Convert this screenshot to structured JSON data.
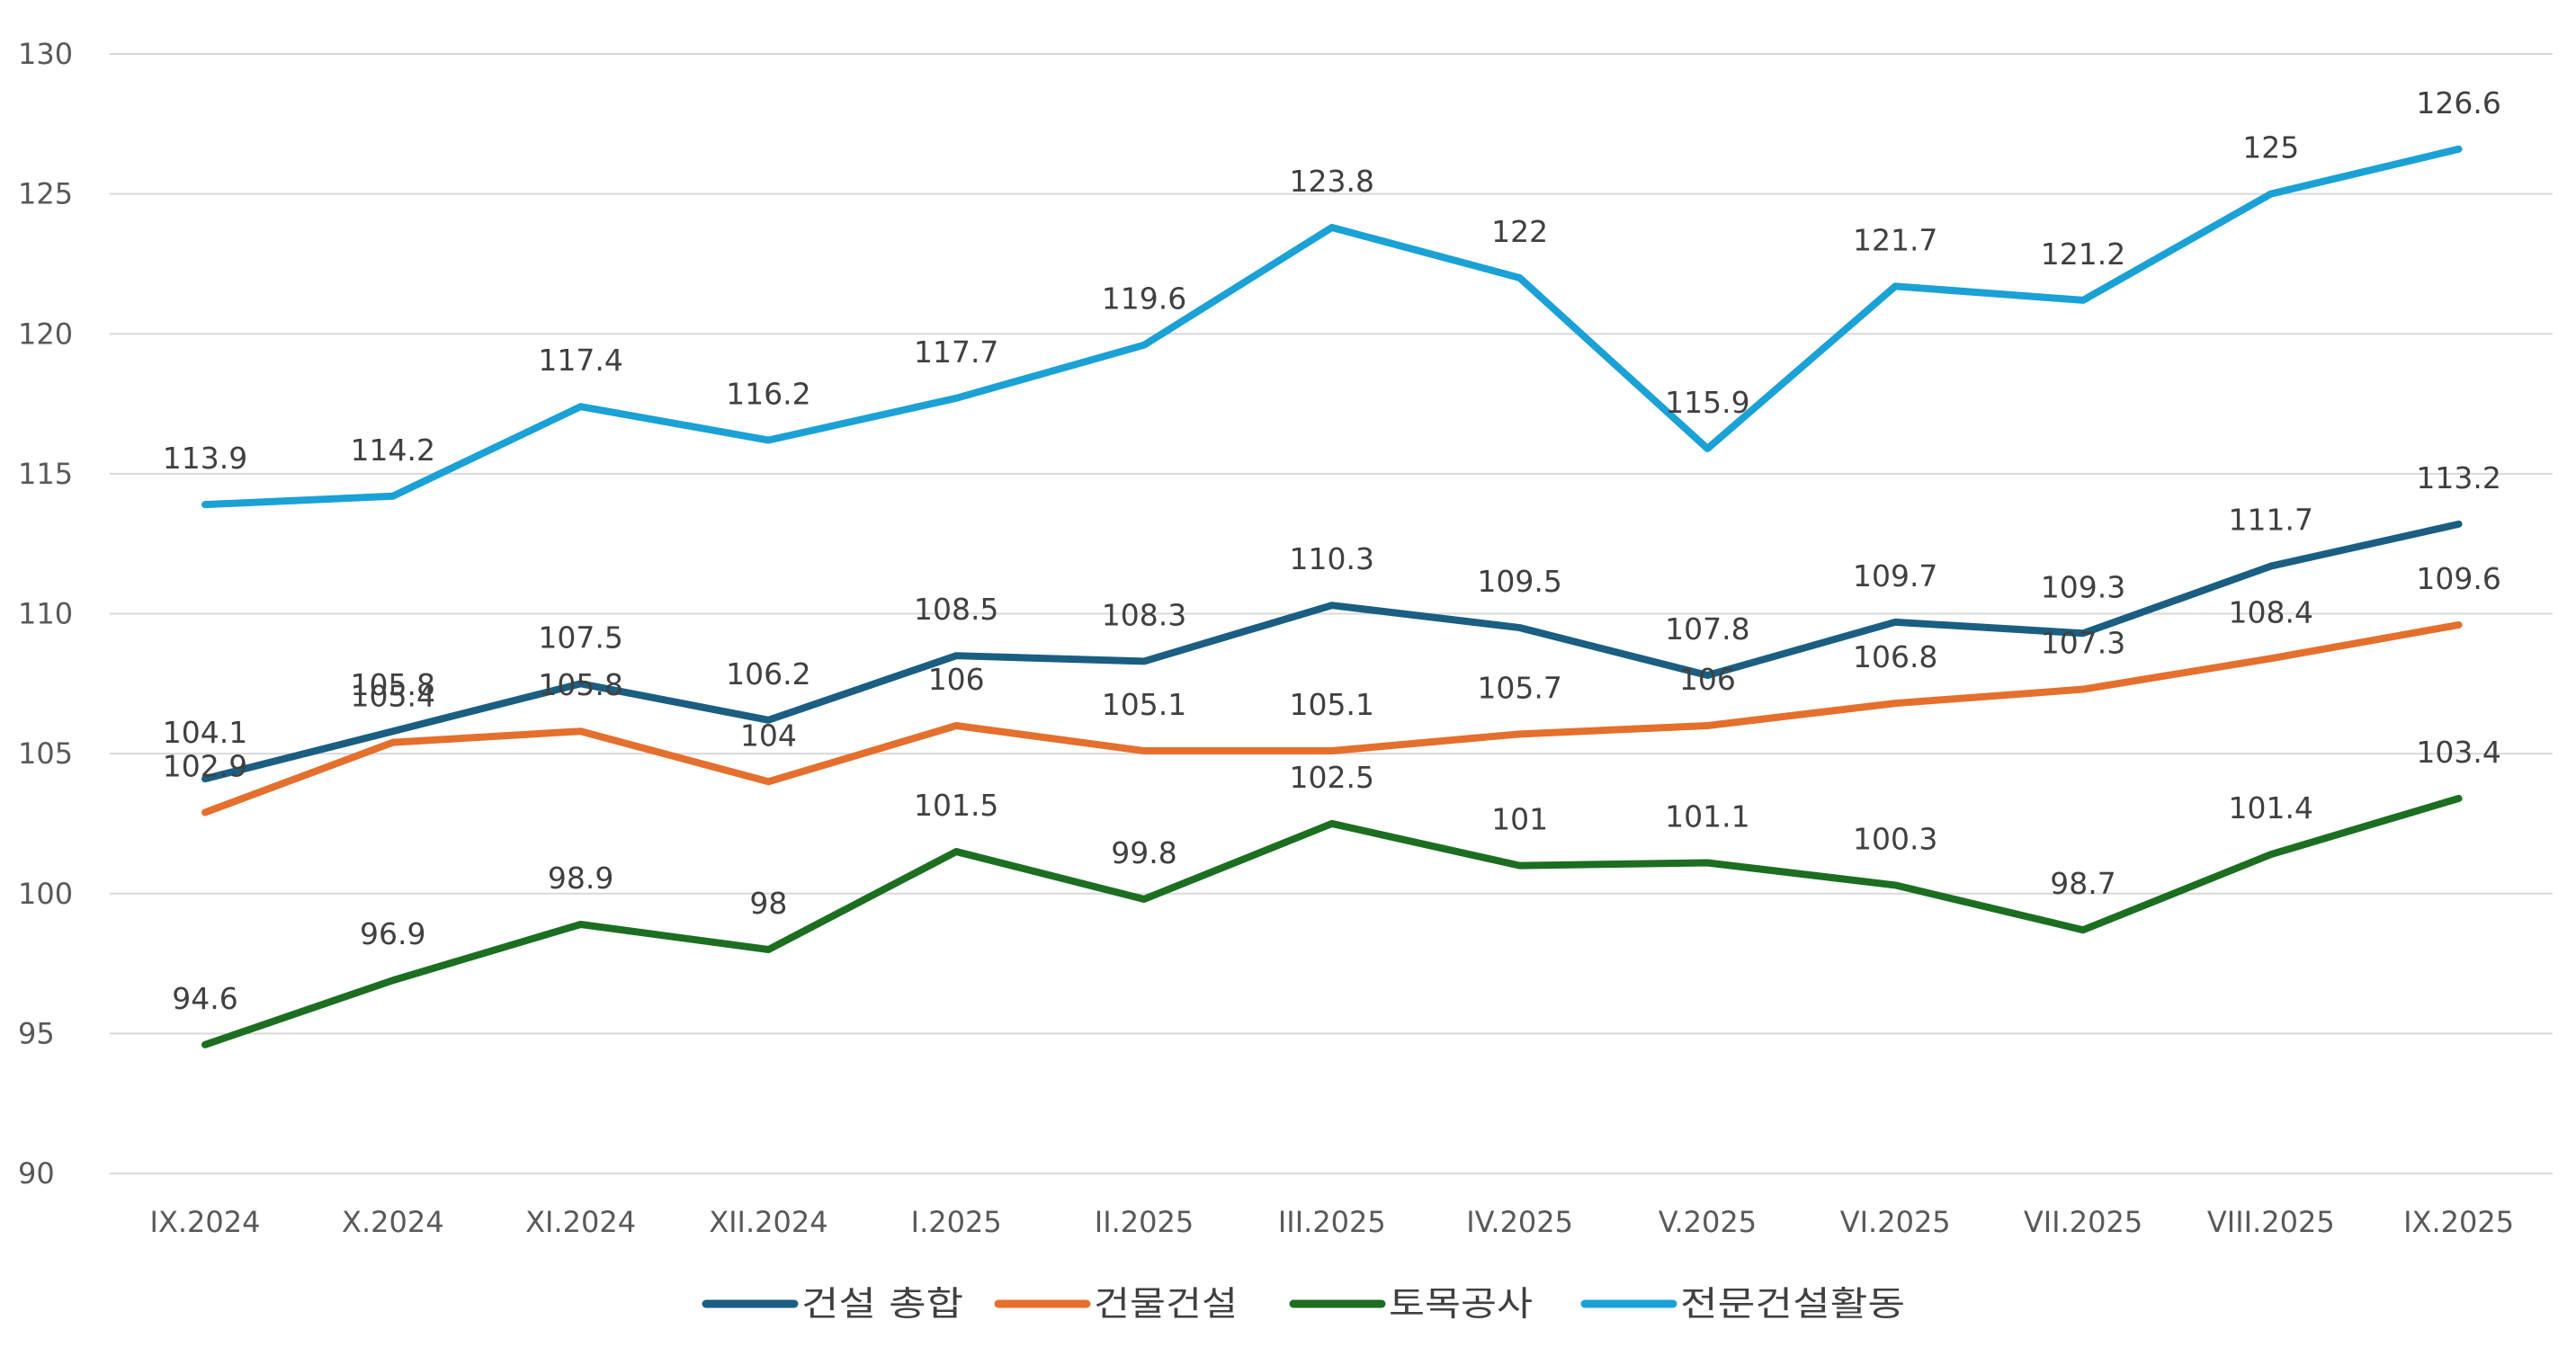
{
  "chart_data": {
    "type": "line",
    "title": "",
    "xlabel": "",
    "ylabel": "",
    "ylim": [
      90,
      130
    ],
    "yticks": [
      90,
      95,
      100,
      105,
      110,
      115,
      120,
      125,
      130
    ],
    "grid": true,
    "legend_position": "bottom",
    "categories": [
      "IX.2024",
      "X.2024",
      "XI.2024",
      "XII.2024",
      "I.2025",
      "II.2025",
      "III.2025",
      "IV.2025",
      "V.2025",
      "VI.2025",
      "VII.2025",
      "VIII.2025",
      "IX.2025"
    ],
    "series": [
      {
        "name": "건설 총합",
        "color": "#1a5e82",
        "values": [
          104.1,
          105.8,
          107.5,
          106.2,
          108.5,
          108.3,
          110.3,
          109.5,
          107.8,
          109.7,
          109.3,
          111.7,
          113.2
        ]
      },
      {
        "name": "건물건설",
        "color": "#e56f2d",
        "values": [
          102.9,
          105.4,
          105.8,
          104,
          106,
          105.1,
          105.1,
          105.7,
          106,
          106.8,
          107.3,
          108.4,
          109.6
        ]
      },
      {
        "name": "토목공사",
        "color": "#1c6e20",
        "values": [
          94.6,
          96.9,
          98.9,
          98,
          101.5,
          99.8,
          102.5,
          101,
          101.1,
          100.3,
          98.7,
          101.4,
          103.4
        ]
      },
      {
        "name": "전문건설활동",
        "color": "#1aa1d6",
        "values": [
          113.9,
          114.2,
          117.4,
          116.2,
          117.7,
          119.6,
          123.8,
          122,
          115.9,
          121.7,
          121.2,
          125,
          126.6
        ]
      }
    ]
  }
}
